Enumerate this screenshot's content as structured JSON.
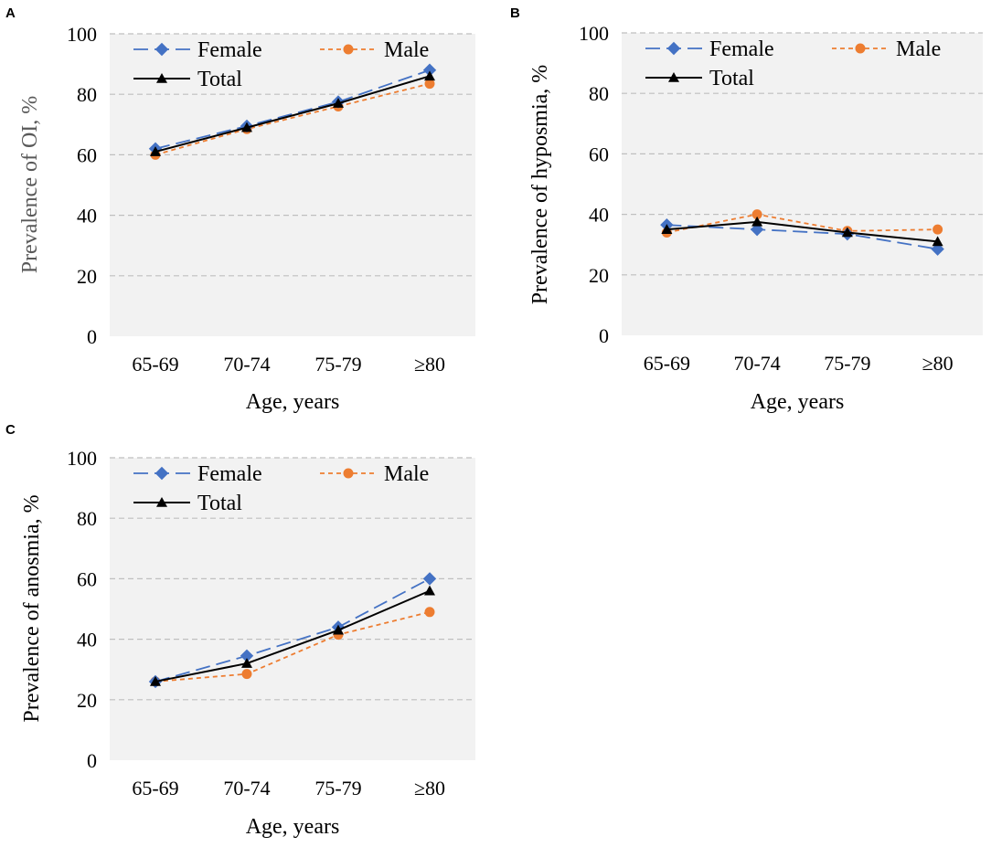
{
  "chart_data": [
    {
      "type": "line",
      "panel": "A",
      "categories": [
        "65-69",
        "70-74",
        "75-79",
        "≥80"
      ],
      "series": [
        {
          "name": "Female",
          "values": [
            62,
            69.5,
            77.5,
            88
          ],
          "color": "#4472C4",
          "marker": "diamond",
          "dash": "long-dash"
        },
        {
          "name": "Male",
          "values": [
            60,
            68.5,
            76,
            83.5
          ],
          "color": "#ED7D31",
          "marker": "circle",
          "dash": "short-dash"
        },
        {
          "name": "Total",
          "values": [
            61,
            69,
            77,
            86
          ],
          "color": "#000000",
          "marker": "triangle",
          "dash": "solid"
        }
      ],
      "xlabel": "Age, years",
      "ylabel": "Prevalence of OI, %",
      "ylim": [
        0,
        100
      ],
      "yticks": [
        "0",
        "20",
        "40",
        "60",
        "80",
        "100"
      ],
      "grid": true,
      "legend": "top"
    },
    {
      "type": "line",
      "panel": "B",
      "categories": [
        "65-69",
        "70-74",
        "75-79",
        "≥80"
      ],
      "series": [
        {
          "name": "Female",
          "values": [
            36.5,
            35,
            33.5,
            28.5
          ],
          "color": "#4472C4",
          "marker": "diamond",
          "dash": "long-dash"
        },
        {
          "name": "Male",
          "values": [
            34,
            40,
            34.5,
            35
          ],
          "color": "#ED7D31",
          "marker": "circle",
          "dash": "short-dash"
        },
        {
          "name": "Total",
          "values": [
            35,
            37.5,
            34,
            31
          ],
          "color": "#000000",
          "marker": "triangle",
          "dash": "solid"
        }
      ],
      "xlabel": "Age, years",
      "ylabel": "Prevalence of hyposmia, %",
      "ylim": [
        0,
        100
      ],
      "yticks": [
        "0",
        "20",
        "40",
        "60",
        "80",
        "100"
      ],
      "grid": true,
      "legend": "top"
    },
    {
      "type": "line",
      "panel": "C",
      "categories": [
        "65-69",
        "70-74",
        "75-79",
        "≥80"
      ],
      "series": [
        {
          "name": "Female",
          "values": [
            26,
            34.5,
            44,
            60
          ],
          "color": "#4472C4",
          "marker": "diamond",
          "dash": "long-dash"
        },
        {
          "name": "Male",
          "values": [
            26,
            28.5,
            41.5,
            49
          ],
          "color": "#ED7D31",
          "marker": "circle",
          "dash": "short-dash"
        },
        {
          "name": "Total",
          "values": [
            26,
            32,
            43,
            56
          ],
          "color": "#000000",
          "marker": "triangle",
          "dash": "solid"
        }
      ],
      "xlabel": "Age, years",
      "ylabel": "Prevalence of anosmia, %",
      "ylim": [
        0,
        100
      ],
      "yticks": [
        "0",
        "20",
        "40",
        "60",
        "80",
        "100"
      ],
      "grid": true,
      "legend": "top"
    }
  ]
}
